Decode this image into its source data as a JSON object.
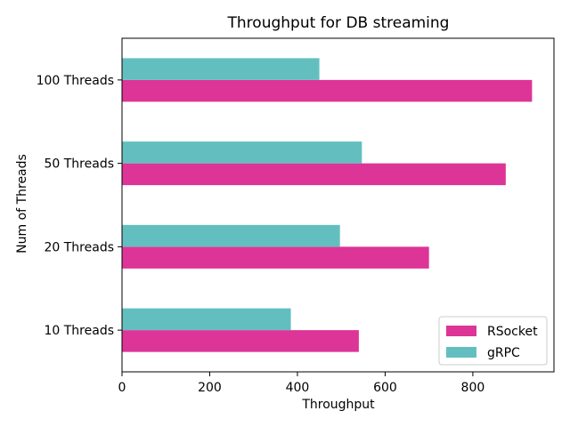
{
  "chart_data": {
    "type": "bar",
    "orientation": "horizontal",
    "title": "Throughput for DB streaming",
    "xlabel": "Throughput",
    "ylabel": "Num of Threads",
    "categories": [
      "10 Threads",
      "20 Threads",
      "50 Threads",
      "100 Threads"
    ],
    "series": [
      {
        "name": "RSocket",
        "values": [
          540,
          700,
          875,
          935
        ],
        "color": "#dd3497"
      },
      {
        "name": "gRPC",
        "values": [
          385,
          497,
          547,
          450
        ],
        "color": "#63bfbf"
      }
    ],
    "xlim": [
      0,
      985
    ],
    "xticks": [
      0,
      200,
      400,
      600,
      800
    ],
    "grid": false,
    "legend_position": "lower-right"
  }
}
